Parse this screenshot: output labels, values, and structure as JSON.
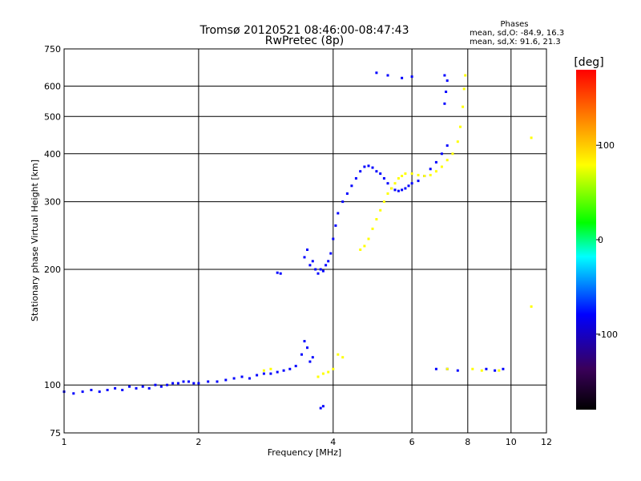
{
  "chart_data": {
    "type": "scatter",
    "title": "Tromsø 20120521 08:46:00-08:47:43",
    "subtitle": "RwPretec (8p)",
    "info_heading": "Phases",
    "info_lines": [
      "mean, sd,O: -84.9, 16.3",
      "mean, sd,X:  91.6, 21.3"
    ],
    "xlabel": "Frequency [MHz]",
    "ylabel": "Stationary phase Virtual Height [km]",
    "x_scale": "log",
    "y_scale": "log",
    "xlim": [
      1,
      12
    ],
    "ylim": [
      75,
      750
    ],
    "grid": true,
    "x_ticks": [
      1,
      2,
      4,
      6,
      8,
      10,
      12
    ],
    "x_tick_labels": [
      "1",
      "2",
      "4",
      "6",
      "8",
      "10",
      "12"
    ],
    "y_ticks": [
      75,
      100,
      200,
      300,
      400,
      500,
      600,
      750
    ],
    "y_tick_labels": [
      "75",
      "100",
      "200",
      "300",
      "400",
      "500",
      "600",
      "750"
    ],
    "colorbar": {
      "label": "[deg]",
      "range": [
        -180,
        180
      ],
      "ticks": [
        100,
        0,
        -100
      ],
      "tick_labels": [
        "100",
        "0",
        "-100"
      ],
      "colors": [
        "#000000",
        "#3a005a",
        "#0000ff",
        "#00ffff",
        "#00ff00",
        "#ffff00",
        "#ff8000",
        "#ff0000"
      ]
    },
    "series": [
      {
        "polarity": "O",
        "color_phase": -85,
        "points": [
          [
            1.0,
            96
          ],
          [
            1.05,
            95
          ],
          [
            1.1,
            96
          ],
          [
            1.15,
            97
          ],
          [
            1.2,
            96
          ],
          [
            1.25,
            97
          ],
          [
            1.3,
            98
          ],
          [
            1.35,
            97
          ],
          [
            1.4,
            99
          ],
          [
            1.45,
            98
          ],
          [
            1.5,
            99
          ],
          [
            1.55,
            98
          ],
          [
            1.6,
            100
          ],
          [
            1.65,
            99
          ],
          [
            1.7,
            100
          ],
          [
            1.75,
            101
          ],
          [
            1.8,
            101
          ],
          [
            1.85,
            102
          ],
          [
            1.9,
            102
          ],
          [
            1.95,
            101
          ],
          [
            2.0,
            101
          ],
          [
            2.1,
            102
          ],
          [
            2.2,
            102
          ],
          [
            2.3,
            103
          ],
          [
            2.4,
            104
          ],
          [
            2.5,
            105
          ],
          [
            2.6,
            104
          ],
          [
            2.7,
            106
          ],
          [
            2.8,
            107
          ],
          [
            2.9,
            107
          ],
          [
            3.0,
            108
          ],
          [
            3.1,
            109
          ],
          [
            3.2,
            110
          ],
          [
            3.3,
            112
          ],
          [
            3.4,
            120
          ],
          [
            3.45,
            130
          ],
          [
            3.5,
            125
          ],
          [
            3.55,
            115
          ],
          [
            3.6,
            118
          ],
          [
            3.45,
            215
          ],
          [
            3.5,
            225
          ],
          [
            3.55,
            205
          ],
          [
            3.6,
            210
          ],
          [
            3.65,
            200
          ],
          [
            3.7,
            195
          ],
          [
            3.75,
            200
          ],
          [
            3.8,
            198
          ],
          [
            3.85,
            205
          ],
          [
            3.9,
            210
          ],
          [
            3.95,
            220
          ],
          [
            4.0,
            240
          ],
          [
            4.05,
            260
          ],
          [
            4.1,
            280
          ],
          [
            4.2,
            300
          ],
          [
            4.3,
            315
          ],
          [
            4.4,
            330
          ],
          [
            4.5,
            345
          ],
          [
            4.6,
            360
          ],
          [
            4.7,
            370
          ],
          [
            4.8,
            372
          ],
          [
            4.9,
            368
          ],
          [
            5.0,
            360
          ],
          [
            5.1,
            355
          ],
          [
            5.2,
            345
          ],
          [
            5.3,
            335
          ],
          [
            5.4,
            325
          ],
          [
            5.5,
            322
          ],
          [
            5.6,
            320
          ],
          [
            5.7,
            322
          ],
          [
            5.8,
            325
          ],
          [
            5.9,
            330
          ],
          [
            6.0,
            335
          ],
          [
            6.2,
            340
          ],
          [
            6.4,
            350
          ],
          [
            6.6,
            365
          ],
          [
            6.8,
            380
          ],
          [
            7.0,
            400
          ],
          [
            7.2,
            420
          ],
          [
            7.1,
            540
          ],
          [
            7.15,
            580
          ],
          [
            7.2,
            620
          ],
          [
            7.1,
            640
          ],
          [
            5.0,
            650
          ],
          [
            5.3,
            640
          ],
          [
            5.7,
            630
          ],
          [
            6.0,
            635
          ],
          [
            3.75,
            87
          ],
          [
            3.8,
            88
          ],
          [
            3.0,
            196
          ],
          [
            3.05,
            195
          ],
          [
            6.8,
            110
          ],
          [
            7.2,
            110
          ],
          [
            7.6,
            109
          ],
          [
            8.8,
            110
          ],
          [
            9.2,
            109
          ],
          [
            9.6,
            110
          ]
        ]
      },
      {
        "polarity": "X",
        "color_phase": 92,
        "points": [
          [
            2.8,
            109
          ],
          [
            2.9,
            110
          ],
          [
            3.7,
            105
          ],
          [
            3.8,
            107
          ],
          [
            3.9,
            108
          ],
          [
            4.0,
            110
          ],
          [
            4.1,
            120
          ],
          [
            4.2,
            118
          ],
          [
            4.6,
            225
          ],
          [
            4.7,
            230
          ],
          [
            4.8,
            240
          ],
          [
            4.9,
            255
          ],
          [
            5.0,
            270
          ],
          [
            5.1,
            285
          ],
          [
            5.2,
            300
          ],
          [
            5.3,
            315
          ],
          [
            5.4,
            325
          ],
          [
            5.5,
            335
          ],
          [
            5.6,
            345
          ],
          [
            5.7,
            350
          ],
          [
            5.8,
            355
          ],
          [
            6.0,
            355
          ],
          [
            6.2,
            352
          ],
          [
            6.4,
            350
          ],
          [
            6.6,
            352
          ],
          [
            6.8,
            360
          ],
          [
            7.0,
            370
          ],
          [
            7.2,
            385
          ],
          [
            7.4,
            400
          ],
          [
            7.6,
            430
          ],
          [
            7.7,
            470
          ],
          [
            7.8,
            530
          ],
          [
            7.85,
            590
          ],
          [
            7.9,
            640
          ],
          [
            7.2,
            110
          ],
          [
            8.2,
            110
          ],
          [
            8.6,
            109
          ],
          [
            9.4,
            109
          ],
          [
            11.1,
            160
          ],
          [
            11.1,
            440
          ]
        ]
      }
    ]
  }
}
